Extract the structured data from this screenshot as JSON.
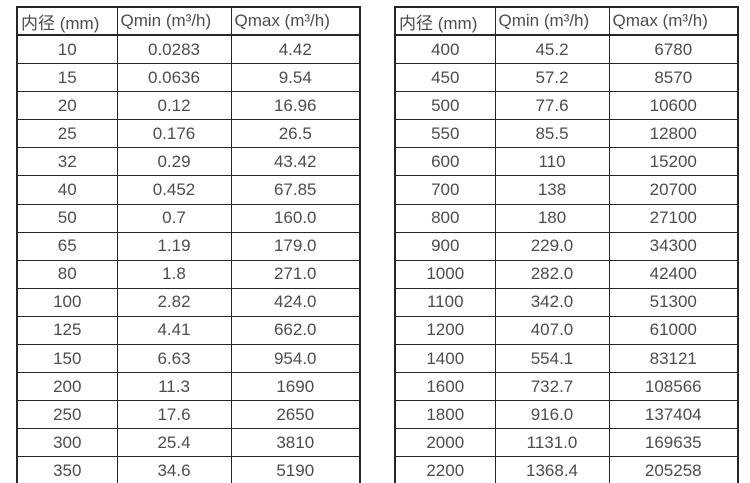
{
  "page": {
    "background": "#ffffff",
    "text_color": "#4d4d4d",
    "border_color": "#262626"
  },
  "tables": [
    {
      "headers": [
        "内径 (mm)",
        "Qmin (m³/h)",
        "Qmax (m³/h)"
      ],
      "rows": [
        [
          "10",
          "0.0283",
          "4.42"
        ],
        [
          "15",
          "0.0636",
          "9.54"
        ],
        [
          "20",
          "0.12",
          "16.96"
        ],
        [
          "25",
          "0.176",
          "26.5"
        ],
        [
          "32",
          "0.29",
          "43.42"
        ],
        [
          "40",
          "0.452",
          "67.85"
        ],
        [
          "50",
          "0.7",
          "160.0"
        ],
        [
          "65",
          "1.19",
          "179.0"
        ],
        [
          "80",
          "1.8",
          "271.0"
        ],
        [
          "100",
          "2.82",
          "424.0"
        ],
        [
          "125",
          "4.41",
          "662.0"
        ],
        [
          "150",
          "6.63",
          "954.0"
        ],
        [
          "200",
          "11.3",
          "1690"
        ],
        [
          "250",
          "17.6",
          "2650"
        ],
        [
          "300",
          "25.4",
          "3810"
        ],
        [
          "350",
          "34.6",
          "5190"
        ]
      ]
    },
    {
      "headers": [
        "内径 (mm)",
        "Qmin (m³/h)",
        "Qmax (m³/h)"
      ],
      "rows": [
        [
          "400",
          "45.2",
          "6780"
        ],
        [
          "450",
          "57.2",
          "8570"
        ],
        [
          "500",
          "77.6",
          "10600"
        ],
        [
          "550",
          "85.5",
          "12800"
        ],
        [
          "600",
          "110",
          "15200"
        ],
        [
          "700",
          "138",
          "20700"
        ],
        [
          "800",
          "180",
          "27100"
        ],
        [
          "900",
          "229.0",
          "34300"
        ],
        [
          "1000",
          "282.0",
          "42400"
        ],
        [
          "1100",
          "342.0",
          "51300"
        ],
        [
          "1200",
          "407.0",
          "61000"
        ],
        [
          "1400",
          "554.1",
          "83121"
        ],
        [
          "1600",
          "732.7",
          "108566"
        ],
        [
          "1800",
          "916.0",
          "137404"
        ],
        [
          "2000",
          "1131.0",
          "169635"
        ],
        [
          "2200",
          "1368.4",
          "205258"
        ]
      ]
    }
  ]
}
